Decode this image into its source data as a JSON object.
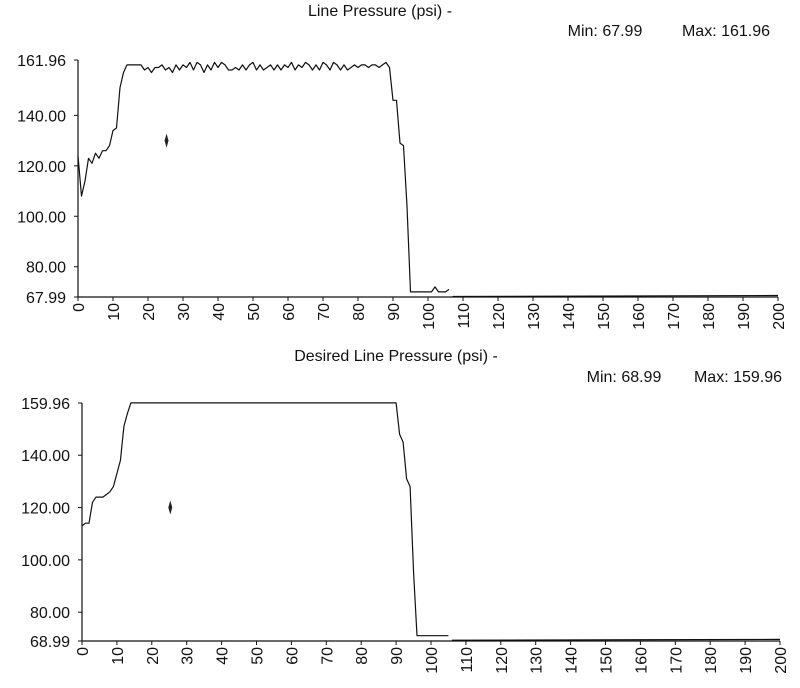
{
  "chart_data": [
    {
      "type": "line",
      "title": "Line Pressure (psi) -",
      "min_label": "Min: 67.99",
      "max_label": "Max: 161.96",
      "xlim": [
        0,
        200
      ],
      "ylim": [
        67.99,
        161.96
      ],
      "xticks": [
        0,
        10,
        20,
        30,
        40,
        50,
        60,
        70,
        80,
        90,
        100,
        110,
        120,
        130,
        140,
        150,
        160,
        170,
        180,
        190,
        200
      ],
      "yticks": [
        {
          "value": 161.96,
          "label": "161.96"
        },
        {
          "value": 140,
          "label": "140.00"
        },
        {
          "value": 120,
          "label": "120.00"
        },
        {
          "value": 100,
          "label": "100.00"
        },
        {
          "value": 80,
          "label": "80.00"
        },
        {
          "value": 67.99,
          "label": "67.99"
        }
      ],
      "grid": false,
      "series": [
        {
          "segments": [
            [
              [
                0,
                124
              ],
              [
                1,
                108
              ],
              [
                2,
                114
              ],
              [
                3,
                123
              ],
              [
                4,
                121
              ],
              [
                5,
                125
              ],
              [
                6,
                123
              ],
              [
                7,
                126
              ],
              [
                8,
                126
              ],
              [
                9,
                128
              ],
              [
                10,
                134
              ],
              [
                11,
                135
              ],
              [
                12,
                151
              ],
              [
                13,
                157
              ],
              [
                14,
                160
              ],
              [
                15,
                160
              ],
              [
                16,
                160
              ],
              [
                17,
                160
              ],
              [
                18,
                160
              ],
              [
                19,
                158
              ],
              [
                20,
                159
              ],
              [
                21,
                157
              ],
              [
                22,
                159
              ],
              [
                23,
                159
              ],
              [
                24,
                160
              ],
              [
                25,
                158
              ],
              [
                26,
                159
              ],
              [
                27,
                157
              ],
              [
                28,
                160
              ],
              [
                29,
                158
              ],
              [
                30,
                160
              ],
              [
                31,
                159
              ],
              [
                32,
                161
              ],
              [
                33,
                158
              ],
              [
                34,
                161
              ],
              [
                35,
                160
              ],
              [
                36,
                157
              ],
              [
                37,
                160
              ],
              [
                38,
                158
              ],
              [
                39,
                161
              ],
              [
                40,
                159
              ],
              [
                41,
                161
              ],
              [
                42,
                160
              ],
              [
                43,
                158
              ],
              [
                44,
                158
              ],
              [
                45,
                159
              ],
              [
                46,
                158
              ],
              [
                47,
                160
              ],
              [
                48,
                158
              ],
              [
                49,
                160
              ],
              [
                50,
                161
              ],
              [
                51,
                158
              ],
              [
                52,
                160
              ],
              [
                53,
                158
              ],
              [
                54,
                159
              ],
              [
                55,
                160
              ],
              [
                56,
                158
              ],
              [
                57,
                160
              ],
              [
                58,
                158
              ],
              [
                59,
                160
              ],
              [
                60,
                159
              ],
              [
                61,
                161
              ],
              [
                62,
                158
              ],
              [
                63,
                160
              ],
              [
                64,
                159
              ],
              [
                65,
                161
              ],
              [
                66,
                160
              ],
              [
                67,
                158
              ],
              [
                68,
                160
              ],
              [
                69,
                158
              ],
              [
                70,
                161
              ],
              [
                71,
                160
              ],
              [
                72,
                158
              ],
              [
                73,
                161
              ],
              [
                74,
                160
              ],
              [
                75,
                158
              ],
              [
                76,
                160
              ],
              [
                77,
                158
              ],
              [
                78,
                159
              ],
              [
                79,
                160
              ],
              [
                80,
                159
              ],
              [
                81,
                160
              ],
              [
                82,
                160
              ],
              [
                83,
                159
              ],
              [
                84,
                160
              ],
              [
                85,
                160
              ],
              [
                86,
                159
              ],
              [
                87,
                160
              ],
              [
                88,
                161
              ],
              [
                89,
                159
              ],
              [
                90,
                146
              ],
              [
                91,
                146
              ],
              [
                92,
                129
              ],
              [
                93,
                128
              ],
              [
                94,
                104
              ],
              [
                95,
                70
              ],
              [
                96,
                70
              ],
              [
                97,
                70
              ],
              [
                98,
                70
              ],
              [
                99,
                70
              ],
              [
                100,
                70
              ],
              [
                101,
                70
              ],
              [
                102,
                72
              ],
              [
                103,
                70
              ],
              [
                104,
                70
              ],
              [
                105,
                70
              ],
              [
                106,
                71
              ]
            ],
            [
              [
                107,
                68.2
              ],
              [
                200,
                68.6
              ]
            ]
          ]
        }
      ],
      "annotations": [
        {
          "type": "marker",
          "x": 25.3,
          "y": 130
        }
      ]
    },
    {
      "type": "line",
      "title": "Desired Line Pressure (psi) -",
      "min_label": "Min: 68.99",
      "max_label": "Max: 159.96",
      "xlim": [
        0,
        200
      ],
      "ylim": [
        68.99,
        159.96
      ],
      "xticks": [
        0,
        10,
        20,
        30,
        40,
        50,
        60,
        70,
        80,
        90,
        100,
        110,
        120,
        130,
        140,
        150,
        160,
        170,
        180,
        190,
        200
      ],
      "yticks": [
        {
          "value": 159.96,
          "label": "159.96"
        },
        {
          "value": 140,
          "label": "140.00"
        },
        {
          "value": 120,
          "label": "120.00"
        },
        {
          "value": 100,
          "label": "100.00"
        },
        {
          "value": 80,
          "label": "80.00"
        },
        {
          "value": 68.99,
          "label": "68.99"
        }
      ],
      "grid": false,
      "series": [
        {
          "segments": [
            [
              [
                0,
                113
              ],
              [
                1,
                114
              ],
              [
                2,
                114
              ],
              [
                3,
                122
              ],
              [
                4,
                124
              ],
              [
                5,
                124
              ],
              [
                6,
                124
              ],
              [
                7,
                125
              ],
              [
                8,
                126
              ],
              [
                9,
                128
              ],
              [
                10,
                133
              ],
              [
                11,
                138
              ],
              [
                12,
                151
              ],
              [
                13,
                156
              ],
              [
                14,
                160
              ],
              [
                90,
                160
              ],
              [
                91,
                148
              ],
              [
                92,
                145
              ],
              [
                93,
                131
              ],
              [
                94,
                128
              ],
              [
                95,
                95
              ],
              [
                96,
                71
              ],
              [
                105,
                71
              ]
            ],
            [
              [
                106,
                69.3
              ],
              [
                200,
                69.6
              ]
            ]
          ]
        }
      ],
      "annotations": [
        {
          "type": "marker",
          "x": 25.3,
          "y": 120
        }
      ]
    }
  ]
}
